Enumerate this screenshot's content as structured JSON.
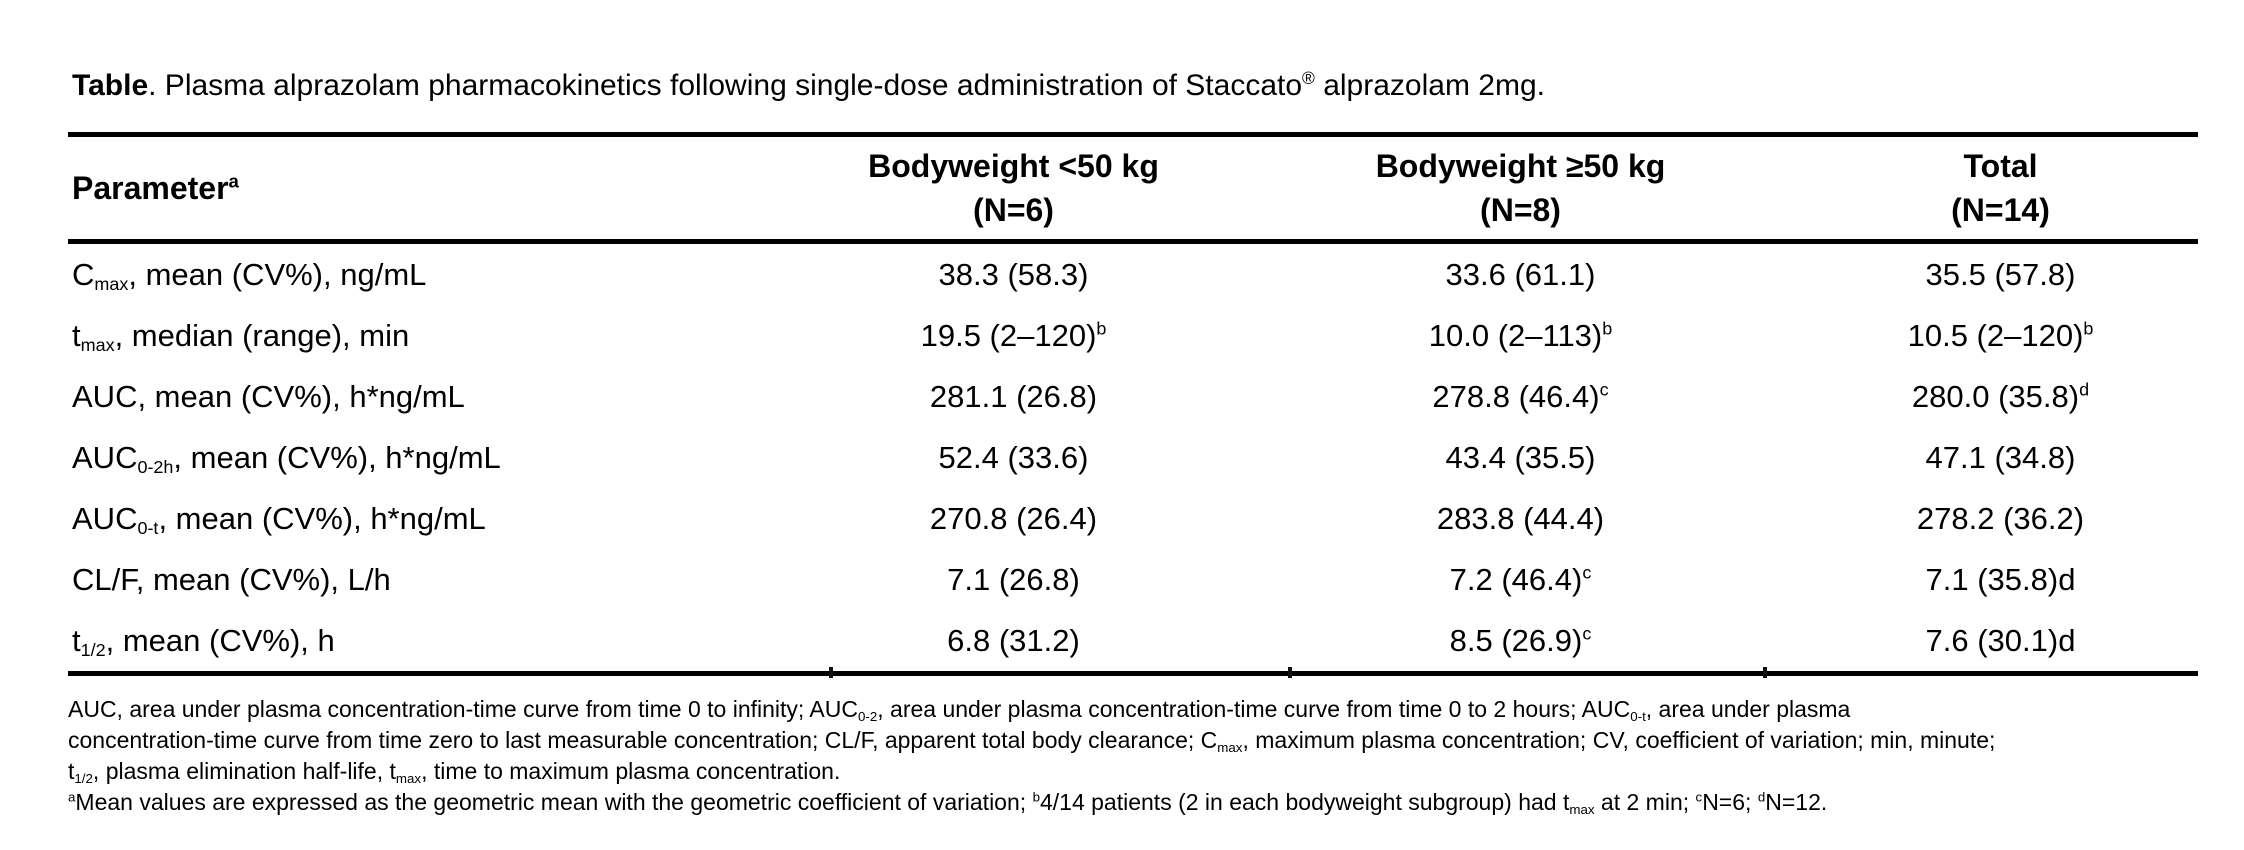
{
  "colors": {
    "background": "#ffffff",
    "text": "#000000",
    "rule": "#000000"
  },
  "title": {
    "label": "Table",
    "text": ". Plasma alprazolam pharmacokinetics following single-dose administration of Staccato^®^ alprazolam 2mg."
  },
  "table": {
    "param_header": "Parameter^a^",
    "columns": [
      {
        "label": "Bodyweight <50 kg",
        "n": "(N=6)"
      },
      {
        "label": "Bodyweight ≥50 kg",
        "n": "(N=8)"
      },
      {
        "label": "Total",
        "n": "(N=14)"
      }
    ],
    "rows": [
      {
        "parameter": "C~max~, mean (CV%), ng/mL",
        "values": [
          "38.3 (58.3)",
          "33.6 (61.1)",
          "35.5 (57.8)"
        ]
      },
      {
        "parameter": "t~max~, median (range), min",
        "values": [
          "19.5 (2–120)^b^",
          "10.0 (2–113)^b^",
          "10.5 (2–120)^b^"
        ]
      },
      {
        "parameter": "AUC, mean (CV%), h*ng/mL",
        "values": [
          "281.1 (26.8)",
          "278.8 (46.4)^c^",
          "280.0 (35.8)^d^"
        ]
      },
      {
        "parameter": "AUC~0-2h~, mean (CV%), h*ng/mL",
        "values": [
          "52.4 (33.6)",
          "43.4 (35.5)",
          "47.1 (34.8)"
        ]
      },
      {
        "parameter": "AUC~0-t~, mean (CV%), h*ng/mL",
        "values": [
          "270.8 (26.4)",
          "283.8 (44.4)",
          "278.2 (36.2)"
        ]
      },
      {
        "parameter": "CL/F, mean (CV%), L/h",
        "values": [
          "7.1 (26.8)",
          "7.2 (46.4)^c^",
          "7.1 (35.8)d"
        ]
      },
      {
        "parameter": "t~1/2~, mean (CV%), h",
        "values": [
          "6.8 (31.2)",
          "8.5 (26.9)^c^",
          "7.6 (30.1)d"
        ]
      }
    ]
  },
  "footnotes": {
    "abbrev_lines": [
      "AUC, area under plasma concentration-time curve from time 0 to infinity; AUC~0-2~, area under plasma concentration-time curve from time 0 to 2 hours; AUC~0-t~, area under plasma",
      "concentration-time curve from time zero to last measurable concentration; CL/F, apparent total body clearance; C~max~, maximum plasma concentration; CV, coefficient of variation; min, minute;",
      "t~1/2~, plasma elimination half-life, t~max~, time to maximum plasma concentration."
    ],
    "note_lines": [
      "^a^Mean values are expressed as the geometric mean with the geometric coefficient of variation; ^b^4/14 patients (2 in each bodyweight subgroup) had t~max~ at 2 min; ^c^N=6; ^d^N=12."
    ]
  }
}
